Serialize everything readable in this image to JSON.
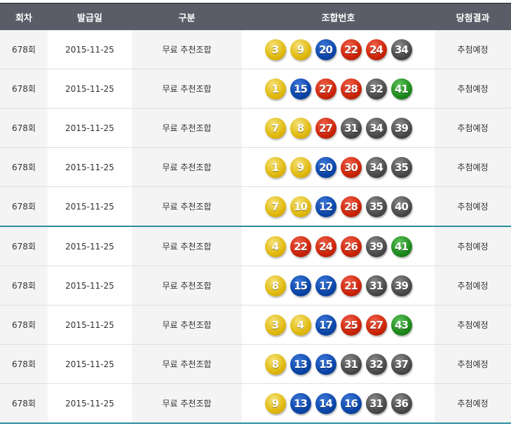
{
  "headers": [
    "회차",
    "발급일",
    "구분",
    "조합번호",
    "당첨결과"
  ],
  "ball_colors": {
    "1-10": "#e0b90e",
    "11-20": "#0b45a8",
    "21-30": "#cc2408",
    "31-40": "#4a4a4a",
    "41-45": "#1e8a1c"
  },
  "rows": [
    {
      "round": "678회",
      "date": "2015-11-25",
      "type": "무료 추천조합",
      "numbers": [
        3,
        9,
        20,
        22,
        24,
        34
      ],
      "result": "추첨예정"
    },
    {
      "round": "678회",
      "date": "2015-11-25",
      "type": "무료 추천조합",
      "numbers": [
        1,
        15,
        27,
        28,
        32,
        41
      ],
      "result": "추첨예정"
    },
    {
      "round": "678회",
      "date": "2015-11-25",
      "type": "무료 추천조합",
      "numbers": [
        7,
        8,
        27,
        31,
        34,
        39
      ],
      "result": "추첨예정"
    },
    {
      "round": "678회",
      "date": "2015-11-25",
      "type": "무료 추천조합",
      "numbers": [
        1,
        9,
        20,
        30,
        34,
        35
      ],
      "result": "추첨예정"
    },
    {
      "round": "678회",
      "date": "2015-11-25",
      "type": "무료 추천조합",
      "numbers": [
        7,
        10,
        12,
        28,
        35,
        40
      ],
      "result": "추첨예정"
    },
    {
      "round": "678회",
      "date": "2015-11-25",
      "type": "무료 추천조합",
      "numbers": [
        4,
        22,
        24,
        26,
        39,
        41
      ],
      "result": "추첨예정"
    },
    {
      "round": "678회",
      "date": "2015-11-25",
      "type": "무료 추천조합",
      "numbers": [
        8,
        15,
        17,
        21,
        31,
        39
      ],
      "result": "추첨예정"
    },
    {
      "round": "678회",
      "date": "2015-11-25",
      "type": "무료 추천조합",
      "numbers": [
        3,
        4,
        17,
        25,
        27,
        43
      ],
      "result": "추첨예정"
    },
    {
      "round": "678회",
      "date": "2015-11-25",
      "type": "무료 추천조합",
      "numbers": [
        8,
        13,
        15,
        31,
        32,
        37
      ],
      "result": "추첨예정"
    },
    {
      "round": "678회",
      "date": "2015-11-25",
      "type": "무료 추천조합",
      "numbers": [
        9,
        13,
        14,
        16,
        31,
        36
      ],
      "result": "추첨예정"
    }
  ]
}
